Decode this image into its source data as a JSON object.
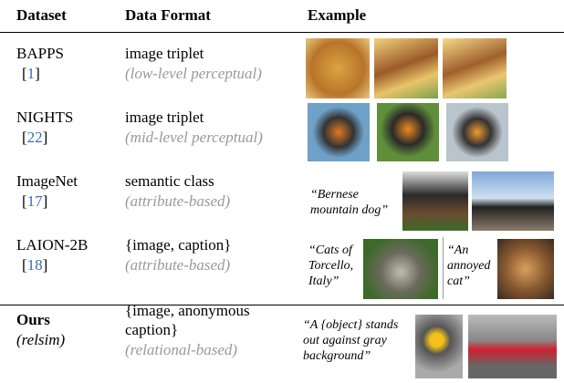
{
  "table": {
    "headers": [
      "Dataset",
      "Data Format",
      "Example"
    ],
    "rows": [
      {
        "dataset": "BAPPS",
        "citation": [
          "[",
          "1",
          "]"
        ],
        "format": "image triplet",
        "format_note": "(low-level perceptual)",
        "captions": []
      },
      {
        "dataset": "NIGHTS",
        "citation": [
          "[",
          "22",
          "]"
        ],
        "format": "image triplet",
        "format_note": "(mid-level perceptual)",
        "captions": []
      },
      {
        "dataset": "ImageNet",
        "citation": [
          "[",
          "17",
          "]"
        ],
        "format": "semantic class",
        "format_note": "(attribute-based)",
        "captions": [
          "“Bernese mountain dog”"
        ]
      },
      {
        "dataset": "LAION-2B",
        "citation": [
          "[",
          "18",
          "]"
        ],
        "format": "{image, caption}",
        "format_note": "(attribute-based)",
        "captions": [
          "“Cats of Torcello, Italy”",
          "“An annoyed cat”"
        ]
      },
      {
        "dataset": "Ours",
        "dataset_note": "(relsim)",
        "format": "{image, anonymous caption}",
        "format_note": "(relational-based)",
        "captions": [
          "“A {object} stands out against gray background”"
        ]
      }
    ]
  }
}
